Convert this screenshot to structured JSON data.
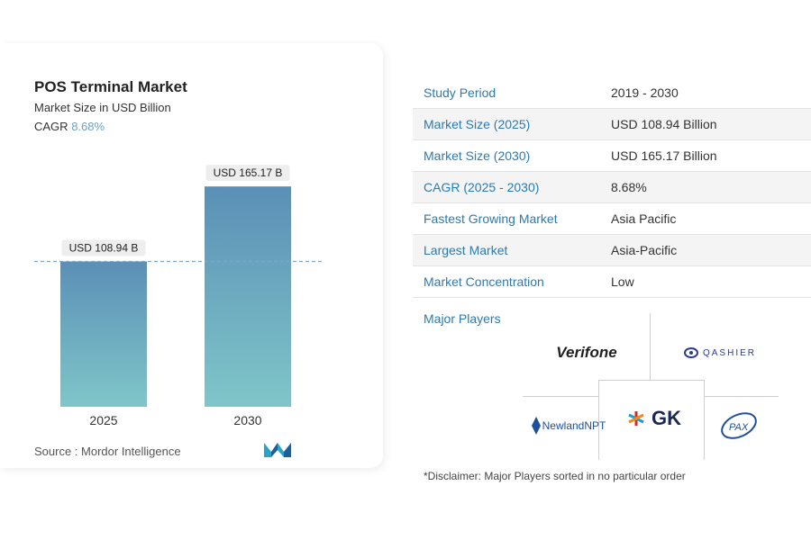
{
  "title": "POS Terminal Market",
  "subtitle": "Market Size in USD Billion",
  "cagr_label": "CAGR",
  "cagr_value": "8.68%",
  "source": "Source :  Mordor Intelligence",
  "chart_data": {
    "type": "bar",
    "categories": [
      "2025",
      "2030"
    ],
    "values": [
      108.94,
      165.17
    ],
    "value_labels": [
      "USD 108.94 B",
      "USD 165.17 B"
    ],
    "title": "POS Terminal Market",
    "ylabel": "Market Size in USD Billion",
    "ylim": [
      0,
      170
    ],
    "reference_line": 108.94,
    "grid": false,
    "colors": {
      "bar_top": "#5b8fb6",
      "bar_bottom": "#7fc6c8",
      "ref_line": "#7aa7cf"
    }
  },
  "table": [
    {
      "key": "Study Period",
      "value": "2019 - 2030"
    },
    {
      "key": "Market Size (2025)",
      "value": "USD 108.94 Billion"
    },
    {
      "key": "Market Size (2030)",
      "value": "USD 165.17 Billion"
    },
    {
      "key": "CAGR (2025 - 2030)",
      "value": "8.68%"
    },
    {
      "key": "Fastest Growing Market",
      "value": "Asia Pacific"
    },
    {
      "key": "Largest Market",
      "value": "Asia-Pacific"
    },
    {
      "key": "Market Concentration",
      "value": "Low"
    }
  ],
  "major_players_label": "Major Players",
  "players": {
    "verifone": "Verifone",
    "qashier": "QASHIER",
    "newland": "NewlandNPT",
    "gk": "GK",
    "pax": "PAX"
  },
  "disclaimer": "*Disclaimer: Major Players sorted in no particular order"
}
